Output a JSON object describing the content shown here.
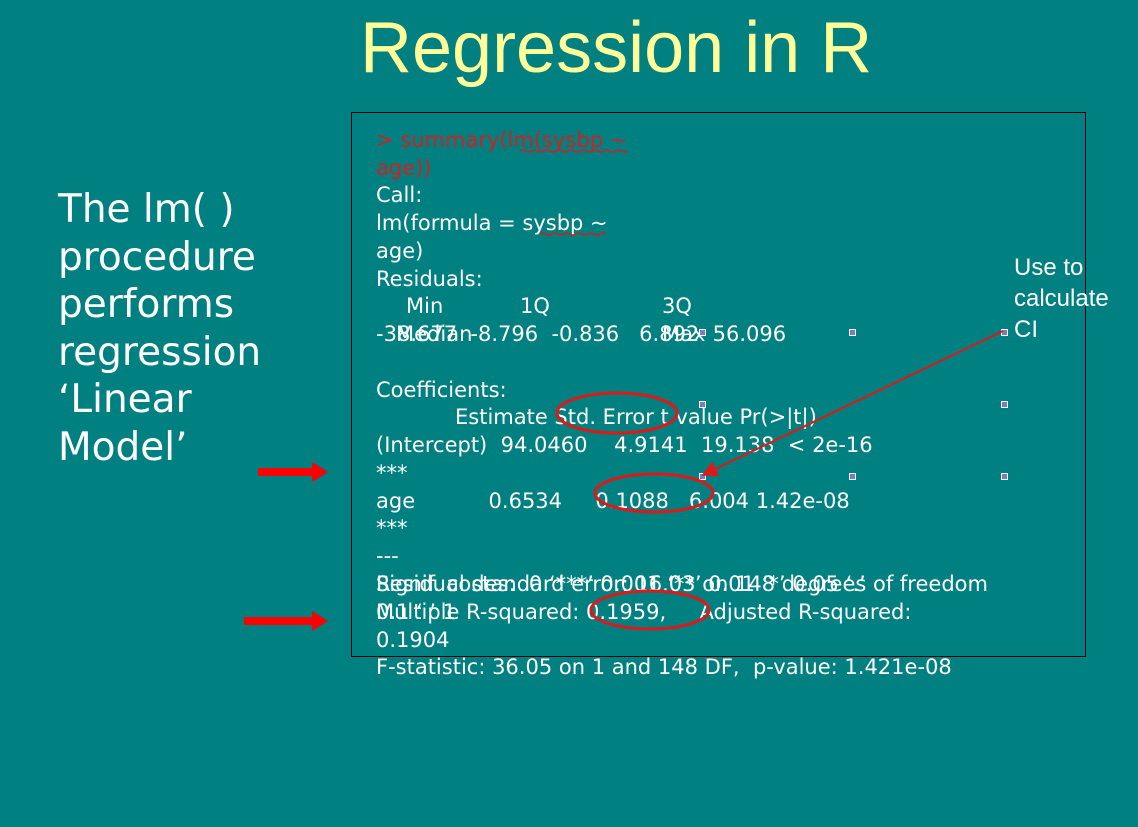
{
  "slide": {
    "title": "Regression in R",
    "left_text": [
      "The lm( )",
      "procedure",
      "performs",
      "regression",
      "‘Linear",
      "Model’"
    ],
    "side_note": [
      "Use to",
      "calculate",
      "CI"
    ]
  },
  "code": {
    "command_1": "> summary(lm(sysbp ~",
    "command_2": "age))",
    "call_label": "Call:",
    "call_1": "lm(formula = sysbp ~",
    "call_2": "age)",
    "residuals_label": "Residuals:",
    "resid_min": "Min",
    "resid_1q": "1Q",
    "resid_3q": "3Q",
    "resid_median": "Median",
    "resid_max": "Max",
    "resid_values": "-38.677  -8.796  -0.836   6.892  56.096",
    "coefficients_label": "Coefficients:",
    "coef_header": "Estimate Std. Error t value Pr(>|t|)",
    "intercept_row": "(Intercept)  94.0460    4.9141  19.138  < 2e-16",
    "intercept_stars": "***",
    "age_row": "age           0.6534     0.1088   6.004 1.42e-08",
    "age_stars": "***",
    "dashes": "---",
    "signif_codes": "Signif. codes:  0 ‘***’ 0.001 ‘**’ 0.01 ‘*’ 0.05 ‘.’",
    "signif_codes_2": "0.1 ‘ ’ 1",
    "resid_se": "Residual standard error: 16.03 on 148 degrees of freedom",
    "multiple_r2": "Multiple R-squared: 0.1959,     Adjusted R-squared:",
    "adjusted_r2": "0.1904",
    "f_statistic": "F-statistic: 36.05 on 1 and 148 DF,  p-value: 1.421e-08"
  },
  "colors": {
    "background": "#008080",
    "title": "#ffff99",
    "accent_red": "#e01818",
    "command_red": "#cc2222"
  }
}
